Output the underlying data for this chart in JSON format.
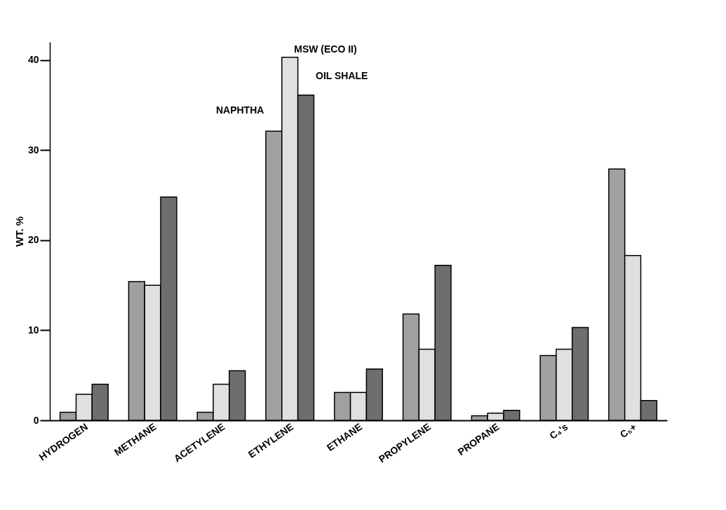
{
  "chart_data": {
    "type": "bar",
    "ylabel": "WT. %",
    "categories": [
      "HYDROGEN",
      "METHANE",
      "ACETYLENE",
      "ETHYLENE",
      "ETHANE",
      "PROPYLENE",
      "PROPANE",
      "C₄'s",
      "C₅+"
    ],
    "series": [
      {
        "name": "NAPHTHA",
        "color": "#a0a0a0",
        "values": [
          0.9,
          15.4,
          0.9,
          32.1,
          3.1,
          11.8,
          0.5,
          7.2,
          27.9
        ]
      },
      {
        "name": "MSW (ECO II)",
        "color": "#e0e0e0",
        "values": [
          2.9,
          15.0,
          4.0,
          40.3,
          3.1,
          7.9,
          0.8,
          7.9,
          18.3
        ]
      },
      {
        "name": "OIL SHALE",
        "color": "#6e6e6e",
        "values": [
          4.0,
          24.8,
          5.5,
          36.1,
          5.7,
          17.2,
          1.1,
          10.3,
          2.2
        ]
      }
    ],
    "ylim": [
      0,
      42
    ],
    "yticks": [
      0,
      10,
      20,
      30,
      40
    ]
  }
}
